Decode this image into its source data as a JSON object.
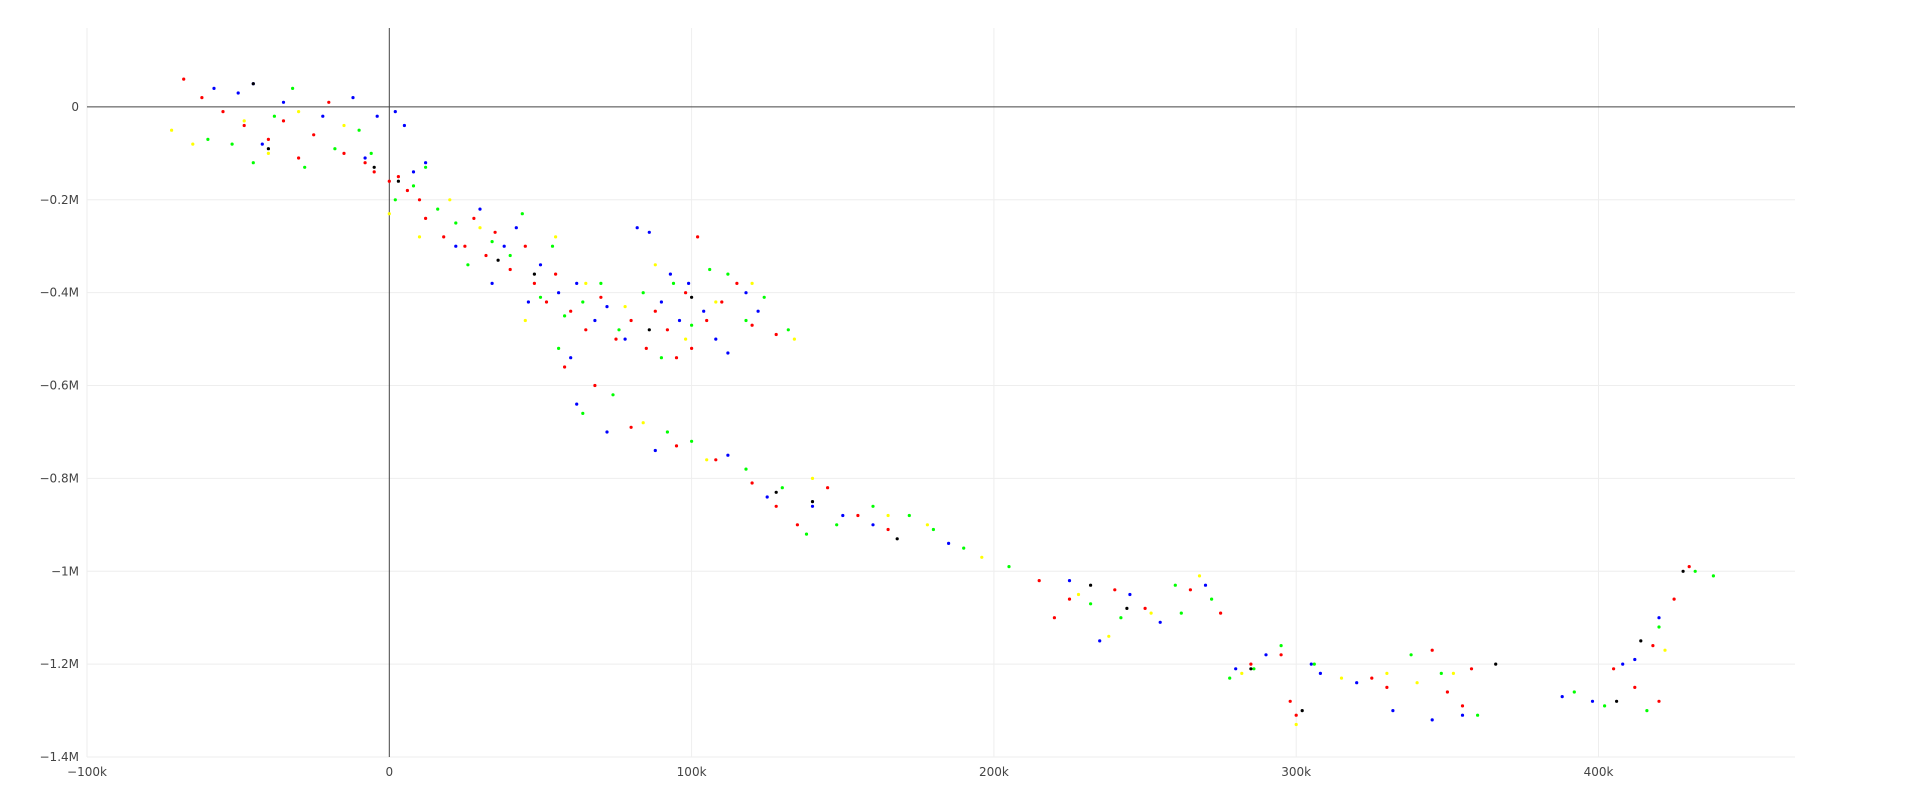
{
  "chart_data": {
    "type": "scatter",
    "title": "",
    "xlabel": "",
    "ylabel": "",
    "xlim": [
      -100000,
      465000
    ],
    "ylim": [
      -1400000,
      170000
    ],
    "grid": true,
    "legend": "none",
    "x_ticks": [
      {
        "value": -100000,
        "label": "−100k"
      },
      {
        "value": 0,
        "label": "0"
      },
      {
        "value": 100000,
        "label": "100k"
      },
      {
        "value": 200000,
        "label": "200k"
      },
      {
        "value": 300000,
        "label": "300k"
      },
      {
        "value": 400000,
        "label": "400k"
      }
    ],
    "y_ticks": [
      {
        "value": 0,
        "label": "0"
      },
      {
        "value": -200000,
        "label": "−0.2M"
      },
      {
        "value": -400000,
        "label": "−0.4M"
      },
      {
        "value": -600000,
        "label": "−0.6M"
      },
      {
        "value": -800000,
        "label": "−0.8M"
      },
      {
        "value": -1000000,
        "label": "−1M"
      },
      {
        "value": -1200000,
        "label": "−1.2M"
      },
      {
        "value": -1400000,
        "label": "−1.4M"
      }
    ],
    "series": [
      {
        "name": "red",
        "color": "#ff0000",
        "values": [
          [
            -68000,
            60000
          ],
          [
            -62000,
            20000
          ],
          [
            -55000,
            -10000
          ],
          [
            -48000,
            -40000
          ],
          [
            -40000,
            -70000
          ],
          [
            -35000,
            -30000
          ],
          [
            -30000,
            -110000
          ],
          [
            -25000,
            -60000
          ],
          [
            -20000,
            10000
          ],
          [
            -15000,
            -100000
          ],
          [
            -8000,
            -120000
          ],
          [
            -5000,
            -140000
          ],
          [
            0,
            -160000
          ],
          [
            3000,
            -150000
          ],
          [
            6000,
            -180000
          ],
          [
            10000,
            -200000
          ],
          [
            12000,
            -240000
          ],
          [
            18000,
            -280000
          ],
          [
            25000,
            -300000
          ],
          [
            28000,
            -240000
          ],
          [
            32000,
            -320000
          ],
          [
            35000,
            -270000
          ],
          [
            40000,
            -350000
          ],
          [
            45000,
            -300000
          ],
          [
            48000,
            -380000
          ],
          [
            52000,
            -420000
          ],
          [
            55000,
            -360000
          ],
          [
            60000,
            -440000
          ],
          [
            65000,
            -480000
          ],
          [
            70000,
            -410000
          ],
          [
            75000,
            -500000
          ],
          [
            80000,
            -460000
          ],
          [
            85000,
            -520000
          ],
          [
            88000,
            -440000
          ],
          [
            92000,
            -480000
          ],
          [
            95000,
            -540000
          ],
          [
            98000,
            -400000
          ],
          [
            100000,
            -520000
          ],
          [
            102000,
            -280000
          ],
          [
            105000,
            -460000
          ],
          [
            110000,
            -420000
          ],
          [
            115000,
            -380000
          ],
          [
            120000,
            -470000
          ],
          [
            128000,
            -490000
          ],
          [
            58000,
            -560000
          ],
          [
            68000,
            -600000
          ],
          [
            80000,
            -690000
          ],
          [
            95000,
            -730000
          ],
          [
            108000,
            -760000
          ],
          [
            120000,
            -810000
          ],
          [
            128000,
            -860000
          ],
          [
            135000,
            -900000
          ],
          [
            145000,
            -820000
          ],
          [
            155000,
            -880000
          ],
          [
            165000,
            -910000
          ],
          [
            215000,
            -1020000
          ],
          [
            220000,
            -1100000
          ],
          [
            225000,
            -1060000
          ],
          [
            240000,
            -1040000
          ],
          [
            250000,
            -1080000
          ],
          [
            265000,
            -1040000
          ],
          [
            275000,
            -1090000
          ],
          [
            285000,
            -1200000
          ],
          [
            295000,
            -1180000
          ],
          [
            298000,
            -1280000
          ],
          [
            300000,
            -1310000
          ],
          [
            325000,
            -1230000
          ],
          [
            330000,
            -1250000
          ],
          [
            345000,
            -1170000
          ],
          [
            350000,
            -1260000
          ],
          [
            355000,
            -1290000
          ],
          [
            358000,
            -1210000
          ],
          [
            405000,
            -1210000
          ],
          [
            412000,
            -1250000
          ],
          [
            418000,
            -1160000
          ],
          [
            420000,
            -1280000
          ],
          [
            425000,
            -1060000
          ],
          [
            430000,
            -990000
          ]
        ]
      },
      {
        "name": "blue",
        "color": "#0000ff",
        "values": [
          [
            -58000,
            40000
          ],
          [
            -50000,
            30000
          ],
          [
            -45000,
            50000
          ],
          [
            -42000,
            -80000
          ],
          [
            -35000,
            10000
          ],
          [
            -22000,
            -20000
          ],
          [
            -12000,
            20000
          ],
          [
            -8000,
            -110000
          ],
          [
            -4000,
            -20000
          ],
          [
            2000,
            -10000
          ],
          [
            5000,
            -40000
          ],
          [
            8000,
            -140000
          ],
          [
            12000,
            -120000
          ],
          [
            22000,
            -300000
          ],
          [
            30000,
            -220000
          ],
          [
            34000,
            -380000
          ],
          [
            38000,
            -300000
          ],
          [
            42000,
            -260000
          ],
          [
            46000,
            -420000
          ],
          [
            50000,
            -340000
          ],
          [
            56000,
            -400000
          ],
          [
            62000,
            -380000
          ],
          [
            68000,
            -460000
          ],
          [
            72000,
            -430000
          ],
          [
            78000,
            -500000
          ],
          [
            82000,
            -260000
          ],
          [
            86000,
            -270000
          ],
          [
            90000,
            -420000
          ],
          [
            93000,
            -360000
          ],
          [
            96000,
            -460000
          ],
          [
            99000,
            -380000
          ],
          [
            104000,
            -440000
          ],
          [
            108000,
            -500000
          ],
          [
            112000,
            -530000
          ],
          [
            118000,
            -400000
          ],
          [
            122000,
            -440000
          ],
          [
            60000,
            -540000
          ],
          [
            62000,
            -640000
          ],
          [
            72000,
            -700000
          ],
          [
            88000,
            -740000
          ],
          [
            112000,
            -750000
          ],
          [
            125000,
            -840000
          ],
          [
            140000,
            -860000
          ],
          [
            150000,
            -880000
          ],
          [
            160000,
            -900000
          ],
          [
            185000,
            -940000
          ],
          [
            225000,
            -1020000
          ],
          [
            235000,
            -1150000
          ],
          [
            245000,
            -1050000
          ],
          [
            255000,
            -1110000
          ],
          [
            270000,
            -1030000
          ],
          [
            280000,
            -1210000
          ],
          [
            290000,
            -1180000
          ],
          [
            305000,
            -1200000
          ],
          [
            308000,
            -1220000
          ],
          [
            320000,
            -1240000
          ],
          [
            332000,
            -1300000
          ],
          [
            345000,
            -1320000
          ],
          [
            355000,
            -1310000
          ],
          [
            388000,
            -1270000
          ],
          [
            398000,
            -1280000
          ],
          [
            408000,
            -1200000
          ],
          [
            412000,
            -1190000
          ],
          [
            420000,
            -1100000
          ]
        ]
      },
      {
        "name": "green",
        "color": "#00ff00",
        "values": [
          [
            -60000,
            -70000
          ],
          [
            -52000,
            -80000
          ],
          [
            -45000,
            -120000
          ],
          [
            -38000,
            -20000
          ],
          [
            -32000,
            40000
          ],
          [
            -28000,
            -130000
          ],
          [
            -18000,
            -90000
          ],
          [
            -10000,
            -50000
          ],
          [
            -6000,
            -100000
          ],
          [
            2000,
            -200000
          ],
          [
            8000,
            -170000
          ],
          [
            12000,
            -130000
          ],
          [
            16000,
            -220000
          ],
          [
            22000,
            -250000
          ],
          [
            26000,
            -340000
          ],
          [
            34000,
            -290000
          ],
          [
            40000,
            -320000
          ],
          [
            44000,
            -230000
          ],
          [
            50000,
            -410000
          ],
          [
            54000,
            -300000
          ],
          [
            58000,
            -450000
          ],
          [
            64000,
            -420000
          ],
          [
            70000,
            -380000
          ],
          [
            76000,
            -480000
          ],
          [
            84000,
            -400000
          ],
          [
            90000,
            -540000
          ],
          [
            94000,
            -380000
          ],
          [
            100000,
            -470000
          ],
          [
            106000,
            -350000
          ],
          [
            112000,
            -360000
          ],
          [
            118000,
            -460000
          ],
          [
            124000,
            -410000
          ],
          [
            132000,
            -480000
          ],
          [
            56000,
            -520000
          ],
          [
            64000,
            -660000
          ],
          [
            74000,
            -620000
          ],
          [
            92000,
            -700000
          ],
          [
            100000,
            -720000
          ],
          [
            118000,
            -780000
          ],
          [
            130000,
            -820000
          ],
          [
            138000,
            -920000
          ],
          [
            148000,
            -900000
          ],
          [
            160000,
            -860000
          ],
          [
            172000,
            -880000
          ],
          [
            180000,
            -910000
          ],
          [
            190000,
            -950000
          ],
          [
            205000,
            -990000
          ],
          [
            232000,
            -1070000
          ],
          [
            242000,
            -1100000
          ],
          [
            260000,
            -1030000
          ],
          [
            262000,
            -1090000
          ],
          [
            272000,
            -1060000
          ],
          [
            278000,
            -1230000
          ],
          [
            286000,
            -1210000
          ],
          [
            295000,
            -1160000
          ],
          [
            306000,
            -1200000
          ],
          [
            338000,
            -1180000
          ],
          [
            348000,
            -1220000
          ],
          [
            360000,
            -1310000
          ],
          [
            392000,
            -1260000
          ],
          [
            402000,
            -1290000
          ],
          [
            416000,
            -1300000
          ],
          [
            420000,
            -1120000
          ],
          [
            432000,
            -1000000
          ],
          [
            438000,
            -1010000
          ]
        ]
      },
      {
        "name": "yellow",
        "color": "#ffff00",
        "values": [
          [
            -72000,
            -50000
          ],
          [
            -65000,
            -80000
          ],
          [
            -48000,
            -30000
          ],
          [
            -40000,
            -100000
          ],
          [
            -30000,
            -10000
          ],
          [
            -15000,
            -40000
          ],
          [
            0,
            -230000
          ],
          [
            10000,
            -280000
          ],
          [
            20000,
            -200000
          ],
          [
            30000,
            -260000
          ],
          [
            45000,
            -460000
          ],
          [
            55000,
            -280000
          ],
          [
            65000,
            -380000
          ],
          [
            78000,
            -430000
          ],
          [
            88000,
            -340000
          ],
          [
            98000,
            -500000
          ],
          [
            108000,
            -420000
          ],
          [
            120000,
            -380000
          ],
          [
            134000,
            -500000
          ],
          [
            84000,
            -680000
          ],
          [
            105000,
            -760000
          ],
          [
            140000,
            -800000
          ],
          [
            165000,
            -880000
          ],
          [
            178000,
            -900000
          ],
          [
            196000,
            -970000
          ],
          [
            228000,
            -1050000
          ],
          [
            238000,
            -1140000
          ],
          [
            252000,
            -1090000
          ],
          [
            268000,
            -1010000
          ],
          [
            282000,
            -1220000
          ],
          [
            300000,
            -1330000
          ],
          [
            315000,
            -1230000
          ],
          [
            330000,
            -1220000
          ],
          [
            340000,
            -1240000
          ],
          [
            352000,
            -1220000
          ],
          [
            422000,
            -1170000
          ]
        ]
      },
      {
        "name": "black",
        "color": "#000000",
        "values": [
          [
            -45000,
            50000
          ],
          [
            -40000,
            -90000
          ],
          [
            -5000,
            -130000
          ],
          [
            3000,
            -160000
          ],
          [
            36000,
            -330000
          ],
          [
            48000,
            -360000
          ],
          [
            86000,
            -480000
          ],
          [
            100000,
            -410000
          ],
          [
            128000,
            -830000
          ],
          [
            140000,
            -850000
          ],
          [
            168000,
            -930000
          ],
          [
            232000,
            -1030000
          ],
          [
            244000,
            -1080000
          ],
          [
            285000,
            -1210000
          ],
          [
            302000,
            -1300000
          ],
          [
            366000,
            -1200000
          ],
          [
            406000,
            -1280000
          ],
          [
            414000,
            -1150000
          ],
          [
            428000,
            -1000000
          ]
        ]
      }
    ]
  }
}
